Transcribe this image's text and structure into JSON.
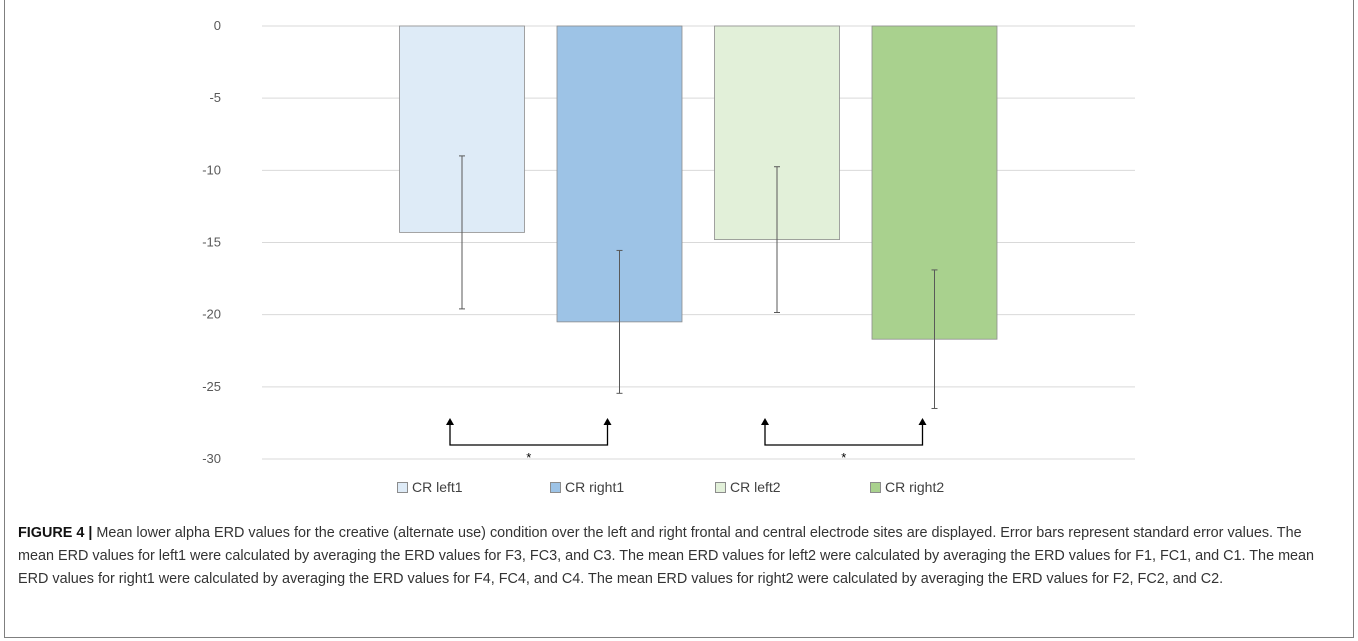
{
  "chart_data": {
    "type": "bar",
    "title": "",
    "xlabel": "",
    "ylabel": "",
    "ylim": [
      -30,
      0
    ],
    "yticks": [
      0,
      -5,
      -10,
      -15,
      -20,
      -25,
      -30
    ],
    "ytick_labels": [
      "0",
      "-5",
      "-10",
      "-15",
      "-20",
      "-25",
      "-30"
    ],
    "grid": true,
    "legend_position": "bottom",
    "series": [
      {
        "name": "CR left1",
        "value": -14.3,
        "error": 5.3,
        "color": "#deebf7"
      },
      {
        "name": "CR right1",
        "value": -20.5,
        "error": 4.95,
        "color": "#9dc3e6"
      },
      {
        "name": "CR left2",
        "value": -14.8,
        "error": 5.05,
        "color": "#e2f0d9"
      },
      {
        "name": "CR right2",
        "value": -21.7,
        "error": 4.8,
        "color": "#a9d18e"
      }
    ],
    "annotations": [
      {
        "from": "CR left1",
        "to": "CR right1",
        "label": "*"
      },
      {
        "from": "CR left2",
        "to": "CR right2",
        "label": "*"
      }
    ]
  },
  "caption": {
    "label": "FIGURE 4 |",
    "text": " Mean lower alpha ERD values for the creative (alternate use) condition over the left and right frontal and central electrode sites are displayed. Error bars represent standard error values. The mean ERD values for left1 were calculated by averaging the ERD values for F3, FC3, and C3. The mean ERD values for left2 were calculated by averaging the ERD values for F1, FC1, and C1. The mean ERD values for right1 were calculated by averaging the ERD values for F4, FC4, and C4. The mean ERD values for right2 were calculated by averaging the ERD values for F2, FC2, and C2."
  }
}
